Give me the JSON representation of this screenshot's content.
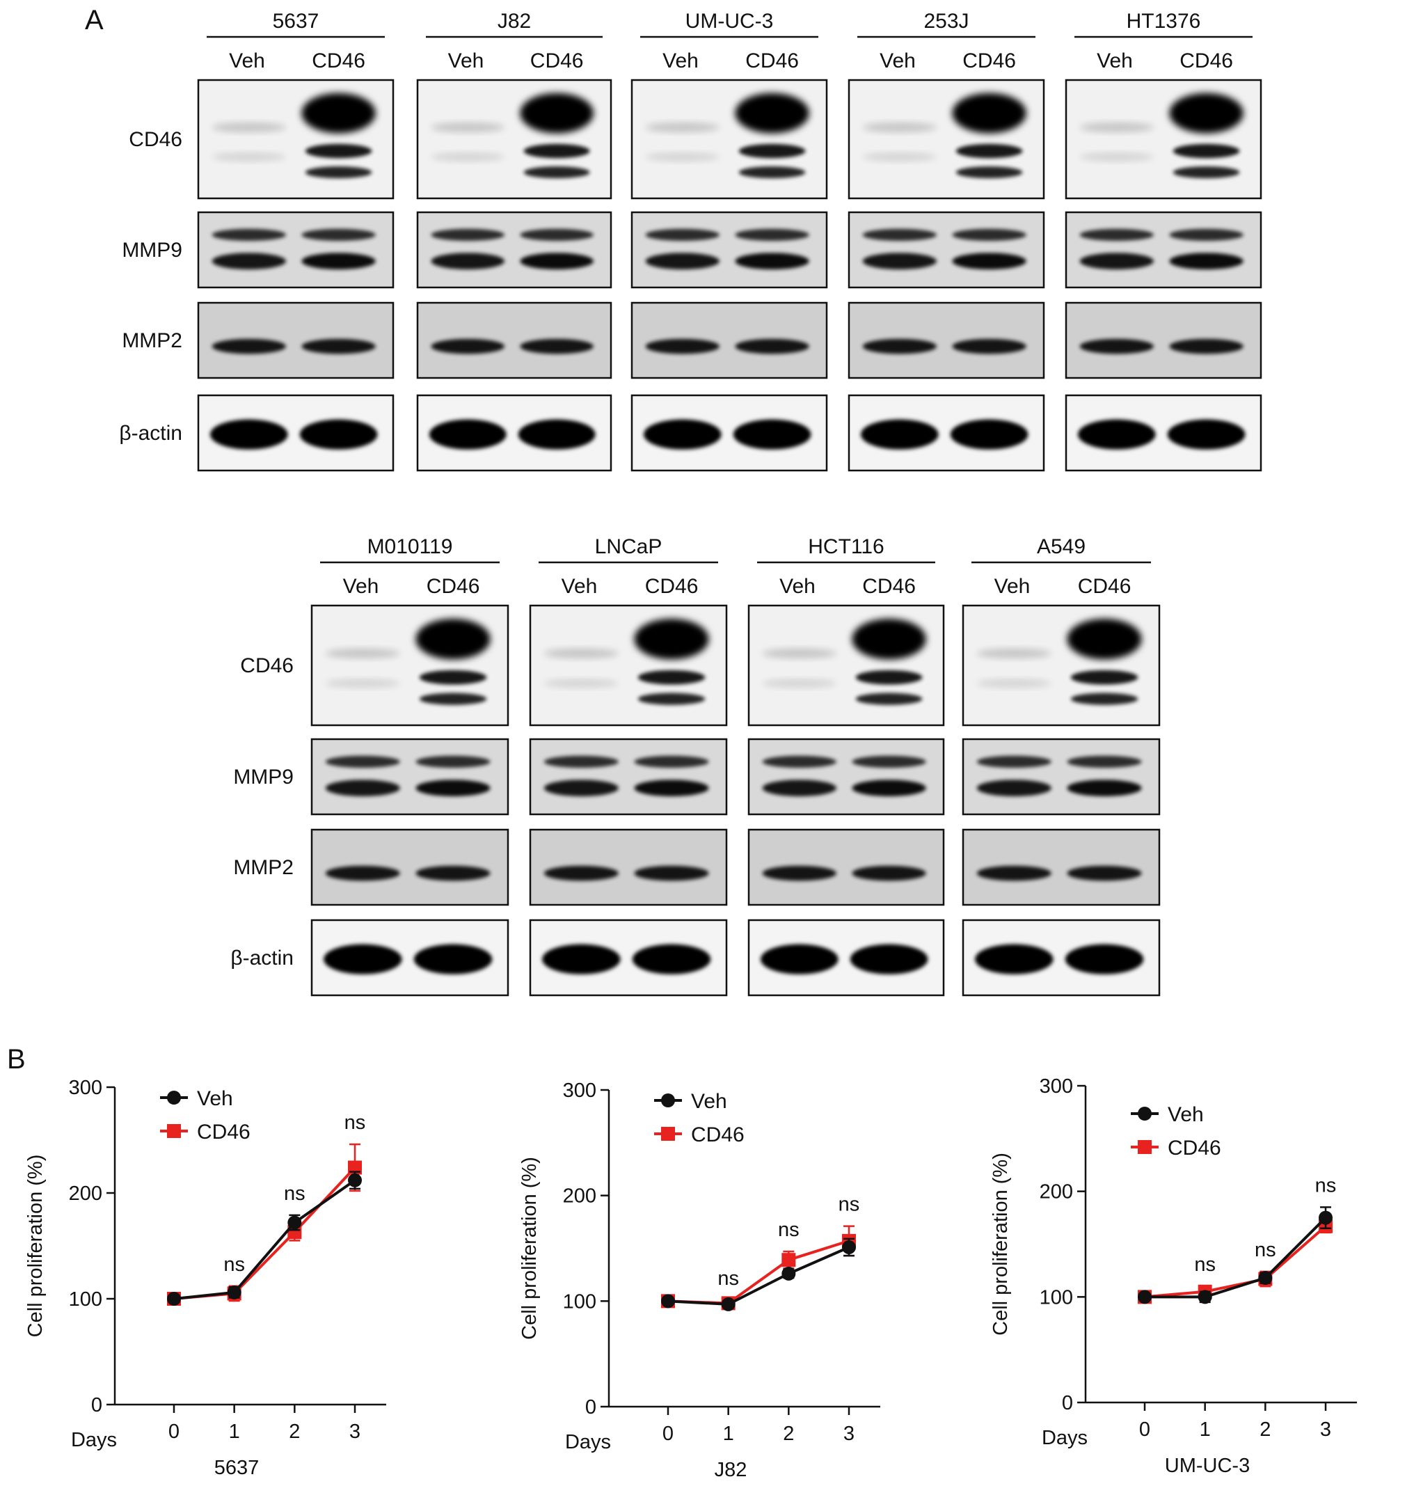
{
  "panel_a": {
    "letter": "A",
    "lane_labels": [
      "Veh",
      "CD46"
    ],
    "protein_labels": [
      "CD46",
      "MMP9",
      "MMP2",
      "β-actin"
    ],
    "row1": [
      {
        "cell_line": "5637"
      },
      {
        "cell_line": "J82"
      },
      {
        "cell_line": "UM-UC-3"
      },
      {
        "cell_line": "253J"
      },
      {
        "cell_line": "HT1376"
      }
    ],
    "row2": [
      {
        "cell_line": "M010119"
      },
      {
        "cell_line": "LNCaP"
      },
      {
        "cell_line": "HCT116"
      },
      {
        "cell_line": "A549"
      }
    ]
  },
  "panel_b": {
    "letter": "B",
    "legend": [
      "Veh",
      "CD46"
    ],
    "colors": {
      "veh": "#111111",
      "cd46": "#e8231f"
    }
  },
  "chart_data": [
    {
      "type": "line",
      "title": "",
      "xlabel": "5637",
      "x_prefix": "Days",
      "ylabel": "Cell proliferation (%)",
      "x": [
        0,
        1,
        2,
        3
      ],
      "ylim": [
        0,
        300
      ],
      "yticks": [
        0,
        100,
        200,
        300
      ],
      "series": [
        {
          "name": "Veh",
          "values": [
            100,
            106,
            172,
            212
          ],
          "errors": [
            3,
            5,
            7,
            8
          ]
        },
        {
          "name": "CD46",
          "values": [
            100,
            105,
            163,
            224
          ],
          "errors": [
            3,
            7,
            8,
            22
          ]
        }
      ],
      "annotations": [
        "",
        "ns",
        "ns",
        "ns"
      ]
    },
    {
      "type": "line",
      "title": "",
      "xlabel": "J82",
      "x_prefix": "Days",
      "ylabel": "Cell proliferation (%)",
      "x": [
        0,
        1,
        2,
        3
      ],
      "ylim": [
        0,
        300
      ],
      "yticks": [
        0,
        100,
        200,
        300
      ],
      "series": [
        {
          "name": "Veh",
          "values": [
            100,
            97,
            126,
            151
          ],
          "errors": [
            3,
            3,
            4,
            8
          ]
        },
        {
          "name": "CD46",
          "values": [
            100,
            98,
            139,
            157
          ],
          "errors": [
            3,
            3,
            8,
            14
          ]
        }
      ],
      "annotations": [
        "",
        "ns",
        "ns",
        "ns"
      ]
    },
    {
      "type": "line",
      "title": "",
      "xlabel": "UM-UC-3",
      "x_prefix": "Days",
      "ylabel": "Cell proliferation (%)",
      "x": [
        0,
        1,
        2,
        3
      ],
      "ylim": [
        0,
        300
      ],
      "yticks": [
        0,
        100,
        200,
        300
      ],
      "series": [
        {
          "name": "Veh",
          "values": [
            100,
            100,
            118,
            175
          ],
          "errors": [
            3,
            5,
            5,
            10
          ]
        },
        {
          "name": "CD46",
          "values": [
            100,
            105,
            117,
            167
          ],
          "errors": [
            3,
            5,
            7,
            6
          ]
        }
      ],
      "annotations": [
        "",
        "ns",
        "ns",
        "ns"
      ]
    }
  ]
}
